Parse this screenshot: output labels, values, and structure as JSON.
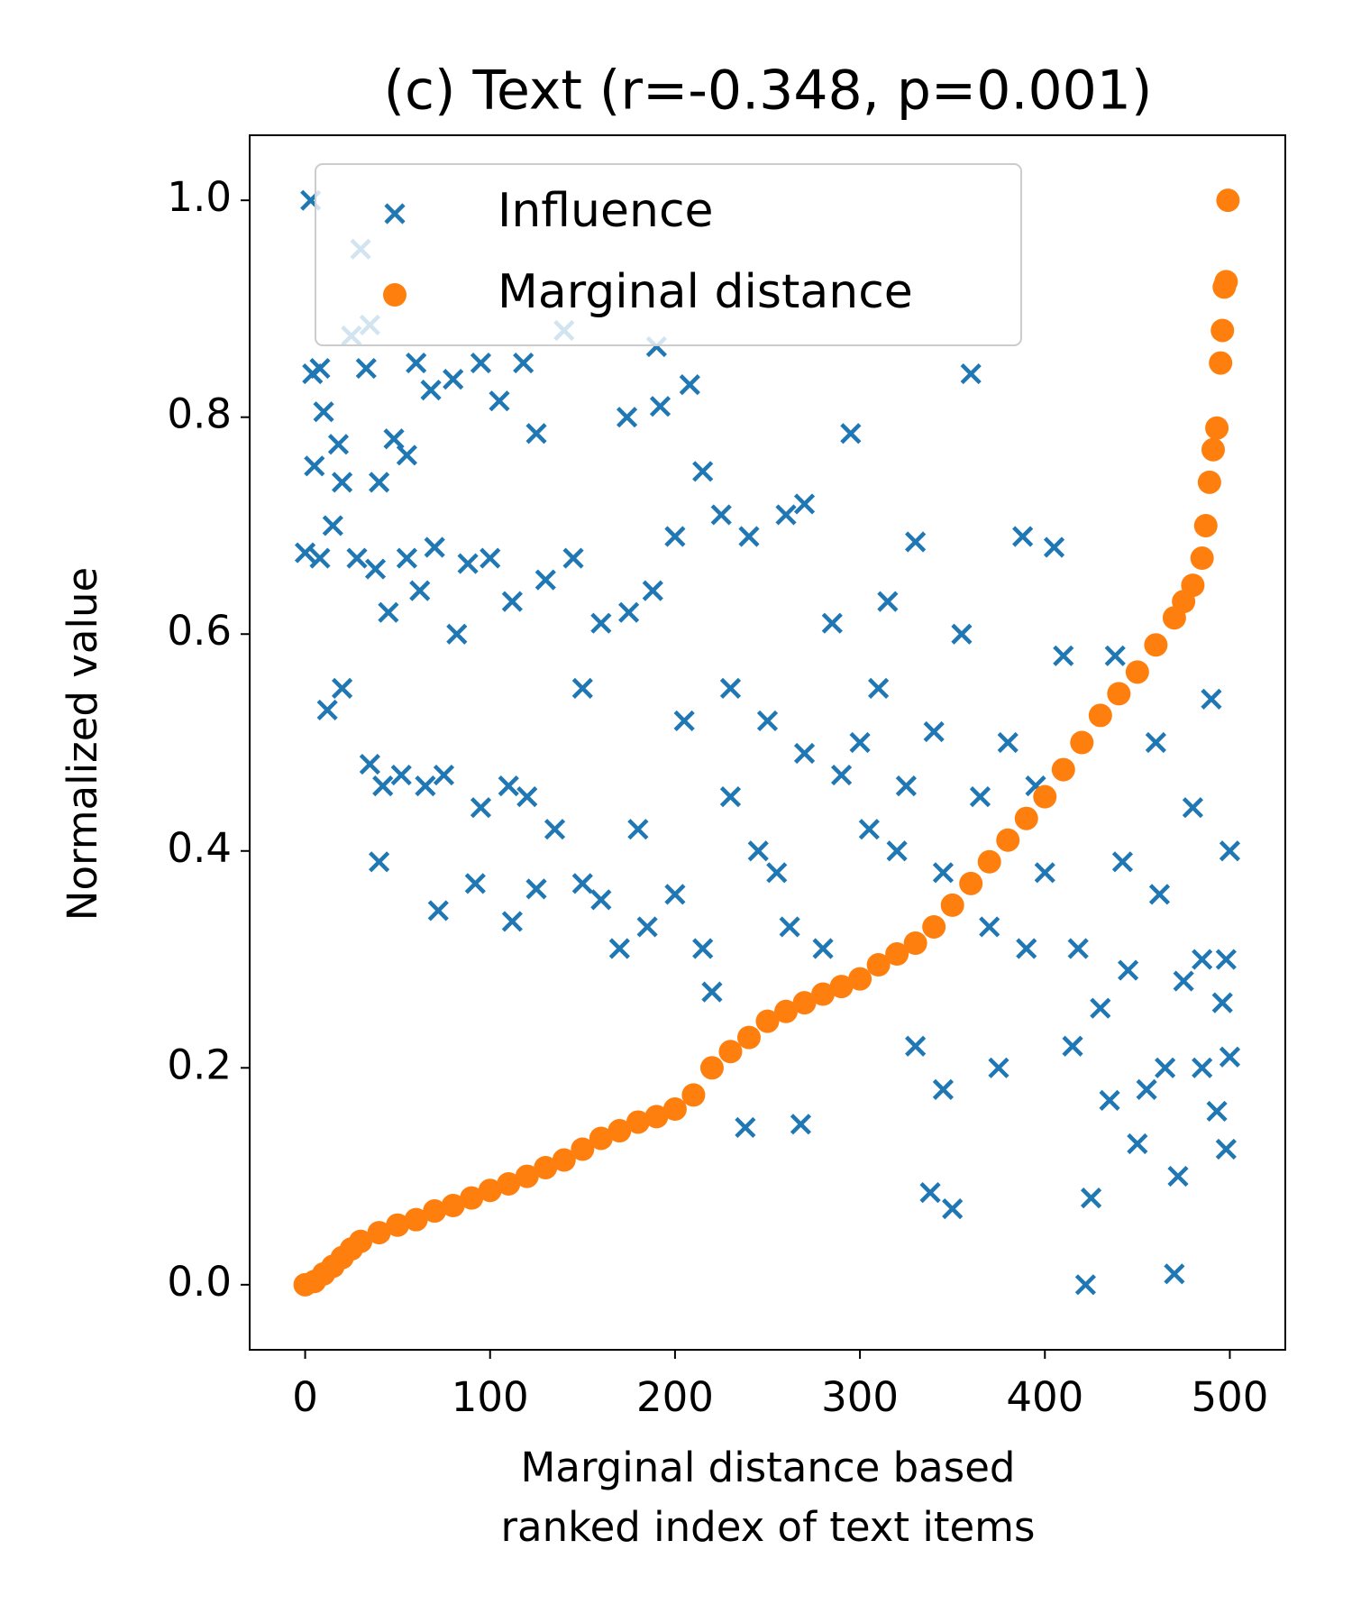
{
  "chart_data": {
    "type": "scatter",
    "title": "(c) Text (r=-0.348, p=0.001)",
    "x_label": [
      "Marginal distance based",
      "ranked index of text items"
    ],
    "y_label": "Normalized value",
    "xlim": [
      -30,
      530
    ],
    "ylim": [
      -0.06,
      1.06
    ],
    "xticks": [
      0,
      100,
      200,
      300,
      400,
      500
    ],
    "yticks": [
      {
        "value": 0,
        "label": "0.0"
      },
      0.2,
      0.4,
      0.6,
      0.8,
      {
        "value": 1,
        "label": "1.0"
      }
    ],
    "legend": "upper center",
    "series": [
      {
        "name": "Influence",
        "color": "#1f77b4",
        "marker": "x",
        "x": [
          3,
          8,
          30,
          35,
          25,
          33,
          4,
          10,
          18,
          5,
          20,
          40,
          48,
          55,
          60,
          68,
          80,
          95,
          105,
          118,
          140,
          190,
          192,
          208,
          174,
          125,
          295,
          360,
          0,
          8,
          15,
          28,
          38,
          45,
          55,
          62,
          70,
          82,
          88,
          100,
          112,
          130,
          145,
          160,
          175,
          188,
          200,
          215,
          225,
          240,
          260,
          270,
          12,
          20,
          35,
          42,
          52,
          65,
          75,
          95,
          110,
          120,
          135,
          150,
          160,
          170,
          185,
          200,
          215,
          220,
          230,
          238,
          268,
          245,
          255,
          262,
          280,
          300,
          305,
          320,
          330,
          338,
          345,
          350,
          340,
          355,
          365,
          375,
          380,
          388,
          395,
          405,
          410,
          418,
          422,
          425,
          430,
          438,
          442,
          445,
          455,
          460,
          462,
          470,
          472,
          475,
          480,
          485,
          490,
          493,
          496,
          498,
          500,
          500,
          498,
          40,
          72,
          112,
          125,
          92,
          150,
          180,
          205,
          230,
          250,
          270,
          290,
          310,
          325,
          345,
          370,
          390,
          400,
          415,
          435,
          450,
          465,
          485,
          315,
          330,
          285
        ],
        "values": [
          1.0,
          0.845,
          0.955,
          0.885,
          0.875,
          0.845,
          0.84,
          0.805,
          0.775,
          0.755,
          0.74,
          0.74,
          0.78,
          0.765,
          0.85,
          0.825,
          0.835,
          0.85,
          0.815,
          0.85,
          0.88,
          0.865,
          0.81,
          0.83,
          0.8,
          0.785,
          0.785,
          0.84,
          0.675,
          0.67,
          0.7,
          0.67,
          0.66,
          0.62,
          0.67,
          0.64,
          0.68,
          0.6,
          0.665,
          0.67,
          0.63,
          0.65,
          0.67,
          0.61,
          0.62,
          0.64,
          0.69,
          0.75,
          0.71,
          0.69,
          0.71,
          0.72,
          0.53,
          0.55,
          0.48,
          0.46,
          0.47,
          0.46,
          0.47,
          0.44,
          0.46,
          0.45,
          0.42,
          0.37,
          0.355,
          0.31,
          0.33,
          0.36,
          0.31,
          0.27,
          0.45,
          0.145,
          0.148,
          0.4,
          0.38,
          0.33,
          0.31,
          0.5,
          0.42,
          0.4,
          0.22,
          0.085,
          0.18,
          0.07,
          0.51,
          0.6,
          0.45,
          0.2,
          0.5,
          0.69,
          0.46,
          0.68,
          0.58,
          0.31,
          0.0,
          0.08,
          0.255,
          0.58,
          0.39,
          0.29,
          0.18,
          0.5,
          0.36,
          0.01,
          0.1,
          0.28,
          0.44,
          0.3,
          0.54,
          0.16,
          0.26,
          0.125,
          0.21,
          0.4,
          0.3,
          0.39,
          0.345,
          0.335,
          0.365,
          0.37,
          0.55,
          0.42,
          0.52,
          0.55,
          0.52,
          0.49,
          0.47,
          0.55,
          0.46,
          0.38,
          0.33,
          0.31,
          0.38,
          0.22,
          0.17,
          0.13,
          0.2,
          0.2,
          0.63,
          0.685,
          0.61
        ]
      },
      {
        "name": "Marginal distance",
        "color": "#ff7f0e",
        "marker": "o",
        "x": [
          0,
          5,
          10,
          15,
          20,
          25,
          30,
          40,
          50,
          60,
          70,
          80,
          90,
          100,
          110,
          120,
          130,
          140,
          150,
          160,
          170,
          180,
          190,
          200,
          210,
          220,
          230,
          240,
          250,
          260,
          270,
          280,
          290,
          300,
          310,
          320,
          330,
          340,
          350,
          360,
          370,
          380,
          390,
          400,
          410,
          420,
          430,
          440,
          450,
          460,
          470,
          475,
          480,
          485,
          487,
          489,
          491,
          493,
          495,
          496,
          497,
          498,
          499
        ],
        "values": [
          0,
          0.003,
          0.01,
          0.017,
          0.025,
          0.033,
          0.04,
          0.048,
          0.055,
          0.06,
          0.068,
          0.073,
          0.08,
          0.087,
          0.093,
          0.1,
          0.108,
          0.115,
          0.125,
          0.135,
          0.142,
          0.15,
          0.155,
          0.162,
          0.175,
          0.2,
          0.215,
          0.228,
          0.243,
          0.252,
          0.26,
          0.268,
          0.275,
          0.282,
          0.295,
          0.305,
          0.315,
          0.33,
          0.35,
          0.37,
          0.39,
          0.41,
          0.43,
          0.45,
          0.475,
          0.5,
          0.525,
          0.545,
          0.565,
          0.59,
          0.615,
          0.63,
          0.645,
          0.67,
          0.7,
          0.74,
          0.77,
          0.79,
          0.85,
          0.88,
          0.92,
          0.925,
          1.0
        ]
      }
    ]
  }
}
